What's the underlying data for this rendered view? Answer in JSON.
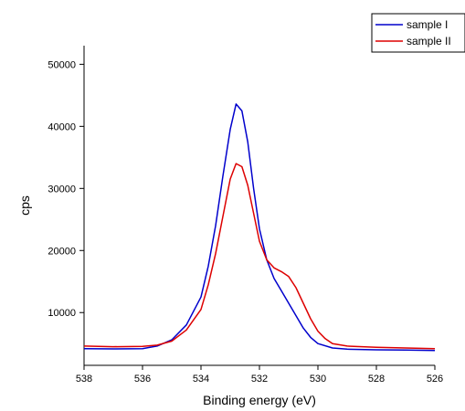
{
  "chart_data": {
    "type": "line",
    "xlabel": "Binding energy (eV)",
    "ylabel": "cps",
    "xlim": [
      538,
      526
    ],
    "x_reversed": true,
    "ylim": [
      1500,
      53000
    ],
    "xticks": [
      538,
      536,
      534,
      532,
      530,
      528,
      526
    ],
    "yticks": [
      10000,
      20000,
      30000,
      40000,
      50000
    ],
    "grid": false,
    "legend": "top-right",
    "series": [
      {
        "name": "sample I",
        "color": "#0000cc",
        "points": [
          [
            538,
            4200
          ],
          [
            537,
            4150
          ],
          [
            536,
            4200
          ],
          [
            535.5,
            4600
          ],
          [
            535,
            5600
          ],
          [
            534.5,
            8000
          ],
          [
            534,
            12500
          ],
          [
            533.75,
            17500
          ],
          [
            533.5,
            24000
          ],
          [
            533.25,
            32000
          ],
          [
            533,
            39500
          ],
          [
            532.8,
            43600
          ],
          [
            532.6,
            42500
          ],
          [
            532.4,
            37500
          ],
          [
            532.2,
            30000
          ],
          [
            532,
            23500
          ],
          [
            531.75,
            18500
          ],
          [
            531.5,
            15500
          ],
          [
            531.25,
            13500
          ],
          [
            531,
            11500
          ],
          [
            530.75,
            9500
          ],
          [
            530.5,
            7500
          ],
          [
            530.25,
            6000
          ],
          [
            530,
            5000
          ],
          [
            529.5,
            4300
          ],
          [
            529,
            4100
          ],
          [
            528,
            4000
          ],
          [
            527,
            3950
          ],
          [
            526,
            3900
          ]
        ]
      },
      {
        "name": "sample II",
        "color": "#dd0000",
        "points": [
          [
            538,
            4600
          ],
          [
            537,
            4500
          ],
          [
            536,
            4550
          ],
          [
            535.5,
            4750
          ],
          [
            535,
            5400
          ],
          [
            534.5,
            7200
          ],
          [
            534,
            10500
          ],
          [
            533.75,
            14500
          ],
          [
            533.5,
            19500
          ],
          [
            533.25,
            25500
          ],
          [
            533,
            31500
          ],
          [
            532.8,
            34000
          ],
          [
            532.6,
            33500
          ],
          [
            532.4,
            30500
          ],
          [
            532.2,
            26000
          ],
          [
            532,
            21500
          ],
          [
            531.75,
            18500
          ],
          [
            531.5,
            17200
          ],
          [
            531.25,
            16600
          ],
          [
            531,
            15800
          ],
          [
            530.75,
            14000
          ],
          [
            530.5,
            11500
          ],
          [
            530.25,
            9000
          ],
          [
            530,
            7000
          ],
          [
            529.75,
            5800
          ],
          [
            529.5,
            5000
          ],
          [
            529,
            4600
          ],
          [
            528,
            4400
          ],
          [
            527,
            4300
          ],
          [
            526,
            4200
          ]
        ]
      }
    ]
  }
}
